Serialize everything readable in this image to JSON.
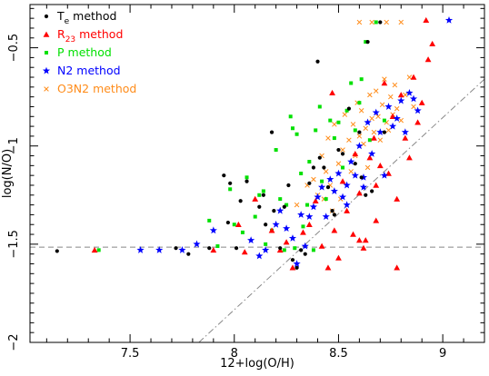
{
  "chart_data": {
    "type": "scatter",
    "xlabel": "12+log(O/H)",
    "ylabel": "log(N/O)",
    "xlim": [
      7.02,
      9.2
    ],
    "ylim": [
      -2.0,
      -0.28
    ],
    "xticks": [
      7.5,
      8,
      8.5,
      9
    ],
    "yticks": [
      -2,
      -1.5,
      -1,
      -0.5
    ],
    "grid": false,
    "legend_position": "top-left",
    "reference_lines": [
      {
        "style": "dashed",
        "color": "#888888",
        "points": [
          [
            7.02,
            -1.515
          ],
          [
            9.2,
            -1.515
          ]
        ]
      },
      {
        "style": "dash-dot",
        "color": "#888888",
        "points": [
          [
            7.83,
            -2.0
          ],
          [
            9.2,
            -0.66
          ]
        ]
      }
    ],
    "series": [
      {
        "name": "T_e method",
        "legend_label": "T",
        "legend_sub": "e",
        "legend_suffix": " method",
        "color": "#000000",
        "marker": "dot",
        "points": [
          [
            7.15,
            -1.535
          ],
          [
            7.72,
            -1.52
          ],
          [
            7.78,
            -1.55
          ],
          [
            7.88,
            -1.52
          ],
          [
            7.95,
            -1.15
          ],
          [
            7.97,
            -1.39
          ],
          [
            7.98,
            -1.19
          ],
          [
            8.01,
            -1.52
          ],
          [
            8.03,
            -1.28
          ],
          [
            8.06,
            -1.18
          ],
          [
            8.12,
            -1.31
          ],
          [
            8.14,
            -1.25
          ],
          [
            8.15,
            -1.4
          ],
          [
            8.18,
            -0.93
          ],
          [
            8.19,
            -1.33
          ],
          [
            8.22,
            -1.52
          ],
          [
            8.24,
            -1.31
          ],
          [
            8.26,
            -1.2
          ],
          [
            8.28,
            -1.58
          ],
          [
            8.3,
            -1.62
          ],
          [
            8.32,
            -1.53
          ],
          [
            8.34,
            -1.55
          ],
          [
            8.36,
            -1.19
          ],
          [
            8.38,
            -1.11
          ],
          [
            8.4,
            -0.57
          ],
          [
            8.41,
            -1.06
          ],
          [
            8.43,
            -1.11
          ],
          [
            8.45,
            -1.21
          ],
          [
            8.47,
            -1.33
          ],
          [
            8.48,
            -1.35
          ],
          [
            8.5,
            -1.02
          ],
          [
            8.52,
            -1.04
          ],
          [
            8.55,
            -0.81
          ],
          [
            8.58,
            -1.09
          ],
          [
            8.6,
            -0.93
          ],
          [
            8.61,
            -1.16
          ],
          [
            8.63,
            -1.25
          ],
          [
            8.64,
            -0.47
          ],
          [
            8.66,
            -1.23
          ],
          [
            8.7,
            -0.37
          ],
          [
            8.72,
            -0.93
          ]
        ]
      },
      {
        "name": "R_23 method",
        "legend_label": "R",
        "legend_sub": "23",
        "legend_suffix": " method",
        "color": "#ff0000",
        "marker": "triangle",
        "points": [
          [
            7.33,
            -1.53
          ],
          [
            7.9,
            -1.53
          ],
          [
            8.02,
            -1.4
          ],
          [
            8.05,
            -1.54
          ],
          [
            8.1,
            -1.27
          ],
          [
            8.18,
            -1.43
          ],
          [
            8.22,
            -1.53
          ],
          [
            8.25,
            -1.49
          ],
          [
            8.28,
            -1.62
          ],
          [
            8.33,
            -1.44
          ],
          [
            8.36,
            -1.4
          ],
          [
            8.39,
            -1.28
          ],
          [
            8.42,
            -1.51
          ],
          [
            8.45,
            -1.62
          ],
          [
            8.48,
            -1.43
          ],
          [
            8.5,
            -1.57
          ],
          [
            8.52,
            -1.18
          ],
          [
            8.54,
            -1.33
          ],
          [
            8.57,
            -1.45
          ],
          [
            8.6,
            -1.24
          ],
          [
            8.62,
            -1.52
          ],
          [
            8.63,
            -1.48
          ],
          [
            8.65,
            -1.06
          ],
          [
            8.67,
            -0.96
          ],
          [
            8.68,
            -1.2
          ],
          [
            8.7,
            -1.1
          ],
          [
            8.72,
            -0.68
          ],
          [
            8.74,
            -1.14
          ],
          [
            8.76,
            -0.85
          ],
          [
            8.78,
            -1.27
          ],
          [
            8.8,
            -0.74
          ],
          [
            8.82,
            -0.96
          ],
          [
            8.84,
            -1.06
          ],
          [
            8.86,
            -0.65
          ],
          [
            8.88,
            -0.88
          ],
          [
            8.9,
            -0.78
          ],
          [
            8.92,
            -0.36
          ],
          [
            8.93,
            -0.56
          ],
          [
            8.95,
            -0.48
          ],
          [
            8.6,
            -1.48
          ],
          [
            8.68,
            -1.38
          ],
          [
            8.78,
            -1.62
          ],
          [
            8.58,
            -1.04
          ],
          [
            8.47,
            -0.73
          ]
        ]
      },
      {
        "name": "P method",
        "legend_label": "P method",
        "color": "#00e000",
        "marker": "square",
        "points": [
          [
            7.35,
            -1.53
          ],
          [
            7.88,
            -1.38
          ],
          [
            7.92,
            -1.51
          ],
          [
            7.98,
            -1.22
          ],
          [
            8.0,
            -1.4
          ],
          [
            8.04,
            -1.44
          ],
          [
            8.06,
            -1.16
          ],
          [
            8.1,
            -1.36
          ],
          [
            8.12,
            -1.25
          ],
          [
            8.14,
            -1.23
          ],
          [
            8.15,
            -1.5
          ],
          [
            8.18,
            -1.43
          ],
          [
            8.2,
            -1.02
          ],
          [
            8.22,
            -1.27
          ],
          [
            8.24,
            -1.53
          ],
          [
            8.25,
            -1.3
          ],
          [
            8.27,
            -0.85
          ],
          [
            8.28,
            -0.91
          ],
          [
            8.29,
            -1.52
          ],
          [
            8.3,
            -0.94
          ],
          [
            8.32,
            -1.14
          ],
          [
            8.33,
            -1.41
          ],
          [
            8.35,
            -1.3
          ],
          [
            8.36,
            -1.08
          ],
          [
            8.38,
            -1.53
          ],
          [
            8.39,
            -0.92
          ],
          [
            8.41,
            -0.8
          ],
          [
            8.42,
            -1.18
          ],
          [
            8.44,
            -1.27
          ],
          [
            8.46,
            -0.87
          ],
          [
            8.48,
            -0.96
          ],
          [
            8.5,
            -0.88
          ],
          [
            8.52,
            -1.11
          ],
          [
            8.54,
            -0.82
          ],
          [
            8.56,
            -0.68
          ],
          [
            8.58,
            -0.92
          ],
          [
            8.6,
            -0.78
          ],
          [
            8.61,
            -0.66
          ],
          [
            8.63,
            -0.47
          ],
          [
            8.65,
            -0.97
          ],
          [
            8.68,
            -0.37
          ],
          [
            8.72,
            -0.87
          ]
        ]
      },
      {
        "name": "N2 method",
        "legend_label": "N2 method",
        "color": "#0000ff",
        "marker": "star",
        "points": [
          [
            7.55,
            -1.53
          ],
          [
            7.64,
            -1.53
          ],
          [
            7.75,
            -1.53
          ],
          [
            7.82,
            -1.5
          ],
          [
            7.9,
            -1.43
          ],
          [
            8.08,
            -1.48
          ],
          [
            8.12,
            -1.56
          ],
          [
            8.15,
            -1.53
          ],
          [
            8.2,
            -1.4
          ],
          [
            8.22,
            -1.33
          ],
          [
            8.25,
            -1.42
          ],
          [
            8.28,
            -1.47
          ],
          [
            8.3,
            -1.6
          ],
          [
            8.32,
            -1.35
          ],
          [
            8.34,
            -1.51
          ],
          [
            8.36,
            -1.36
          ],
          [
            8.38,
            -1.31
          ],
          [
            8.4,
            -1.26
          ],
          [
            8.42,
            -1.21
          ],
          [
            8.44,
            -1.36
          ],
          [
            8.46,
            -1.17
          ],
          [
            8.48,
            -1.23
          ],
          [
            8.5,
            -1.14
          ],
          [
            8.52,
            -1.26
          ],
          [
            8.54,
            -1.2
          ],
          [
            8.56,
            -1.08
          ],
          [
            8.58,
            -1.15
          ],
          [
            8.6,
            -1.0
          ],
          [
            8.62,
            -1.21
          ],
          [
            8.64,
            -0.88
          ],
          [
            8.66,
            -1.04
          ],
          [
            8.68,
            -0.83
          ],
          [
            8.7,
            -0.93
          ],
          [
            8.72,
            -1.15
          ],
          [
            8.74,
            -0.8
          ],
          [
            8.76,
            -0.9
          ],
          [
            8.78,
            -0.86
          ],
          [
            8.8,
            -0.77
          ],
          [
            8.82,
            -0.93
          ],
          [
            8.84,
            -0.73
          ],
          [
            8.86,
            -0.76
          ],
          [
            8.88,
            -0.82
          ],
          [
            9.03,
            -0.36
          ],
          [
            8.62,
            -1.16
          ],
          [
            8.54,
            -1.3
          ]
        ]
      },
      {
        "name": "O3N2 method",
        "legend_label": "O3N2 method",
        "color": "#ff8c1a",
        "marker": "cross",
        "points": [
          [
            8.3,
            -1.3
          ],
          [
            8.35,
            -1.2
          ],
          [
            8.38,
            -1.17
          ],
          [
            8.4,
            -1.25
          ],
          [
            8.42,
            -1.05
          ],
          [
            8.44,
            -1.13
          ],
          [
            8.45,
            -0.96
          ],
          [
            8.46,
            -1.2
          ],
          [
            8.48,
            -0.89
          ],
          [
            8.5,
            -1.09
          ],
          [
            8.51,
            -1.27
          ],
          [
            8.52,
            -1.02
          ],
          [
            8.53,
            -0.84
          ],
          [
            8.55,
            -0.97
          ],
          [
            8.56,
            -1.13
          ],
          [
            8.57,
            -0.89
          ],
          [
            8.58,
            -1.05
          ],
          [
            8.59,
            -0.78
          ],
          [
            8.6,
            -0.95
          ],
          [
            8.61,
            -0.82
          ],
          [
            8.62,
            -0.99
          ],
          [
            8.63,
            -0.91
          ],
          [
            8.64,
            -1.11
          ],
          [
            8.65,
            -0.74
          ],
          [
            8.66,
            -0.86
          ],
          [
            8.67,
            -0.93
          ],
          [
            8.68,
            -0.72
          ],
          [
            8.69,
            -0.85
          ],
          [
            8.7,
            -0.97
          ],
          [
            8.71,
            -0.79
          ],
          [
            8.72,
            -0.66
          ],
          [
            8.73,
            -0.88
          ],
          [
            8.74,
            -0.92
          ],
          [
            8.75,
            -0.75
          ],
          [
            8.76,
            -0.84
          ],
          [
            8.77,
            -0.69
          ],
          [
            8.78,
            -0.81
          ],
          [
            8.8,
            -0.87
          ],
          [
            8.82,
            -0.74
          ],
          [
            8.84,
            -0.65
          ],
          [
            8.86,
            -0.8
          ],
          [
            8.6,
            -0.37
          ],
          [
            8.66,
            -0.37
          ],
          [
            8.73,
            -0.37
          ],
          [
            8.8,
            -0.37
          ],
          [
            8.47,
            -1.33
          ],
          [
            8.43,
            -1.27
          ]
        ]
      }
    ]
  }
}
